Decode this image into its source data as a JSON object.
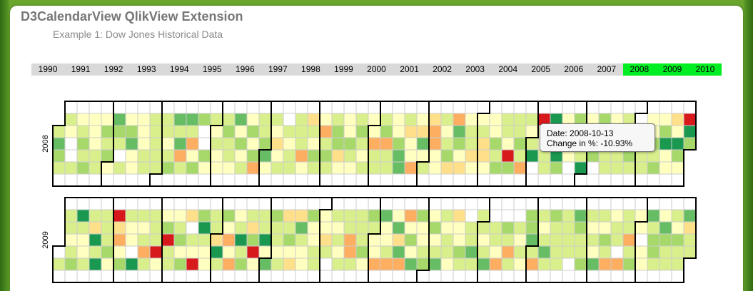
{
  "header": {
    "title": "D3CalendarView QlikView Extension",
    "subtitle": "Example 1: Dow Jones Historical Data"
  },
  "years": [
    {
      "label": "1990",
      "selected": false
    },
    {
      "label": "1991",
      "selected": false
    },
    {
      "label": "1992",
      "selected": false
    },
    {
      "label": "1993",
      "selected": false
    },
    {
      "label": "1994",
      "selected": false
    },
    {
      "label": "1995",
      "selected": false
    },
    {
      "label": "1996",
      "selected": false
    },
    {
      "label": "1997",
      "selected": false
    },
    {
      "label": "1998",
      "selected": false
    },
    {
      "label": "1999",
      "selected": false
    },
    {
      "label": "2000",
      "selected": false
    },
    {
      "label": "2001",
      "selected": false
    },
    {
      "label": "2002",
      "selected": false
    },
    {
      "label": "2003",
      "selected": false
    },
    {
      "label": "2004",
      "selected": false
    },
    {
      "label": "2005",
      "selected": false
    },
    {
      "label": "2006",
      "selected": false
    },
    {
      "label": "2007",
      "selected": false
    },
    {
      "label": "2008",
      "selected": true
    },
    {
      "label": "2009",
      "selected": true
    },
    {
      "label": "2010",
      "selected": true
    }
  ],
  "calendars": [
    {
      "year": 2008,
      "label": "2008"
    },
    {
      "year": 2009,
      "label": "2009"
    }
  ],
  "tooltip": {
    "date_line": "Date: 2008-10-13",
    "change_line": "Change in %: -10.93%"
  },
  "colors": {
    "selected_year": "#00ee22",
    "scale": [
      "#d7191c",
      "#f46d43",
      "#fdae61",
      "#fee08b",
      "#ffffbf",
      "#d9ef8b",
      "#a6d96a",
      "#66bd63",
      "#1a9850"
    ],
    "no_data": "#ffffff",
    "grid": "#cccccc",
    "month_outline": "#000000"
  }
}
